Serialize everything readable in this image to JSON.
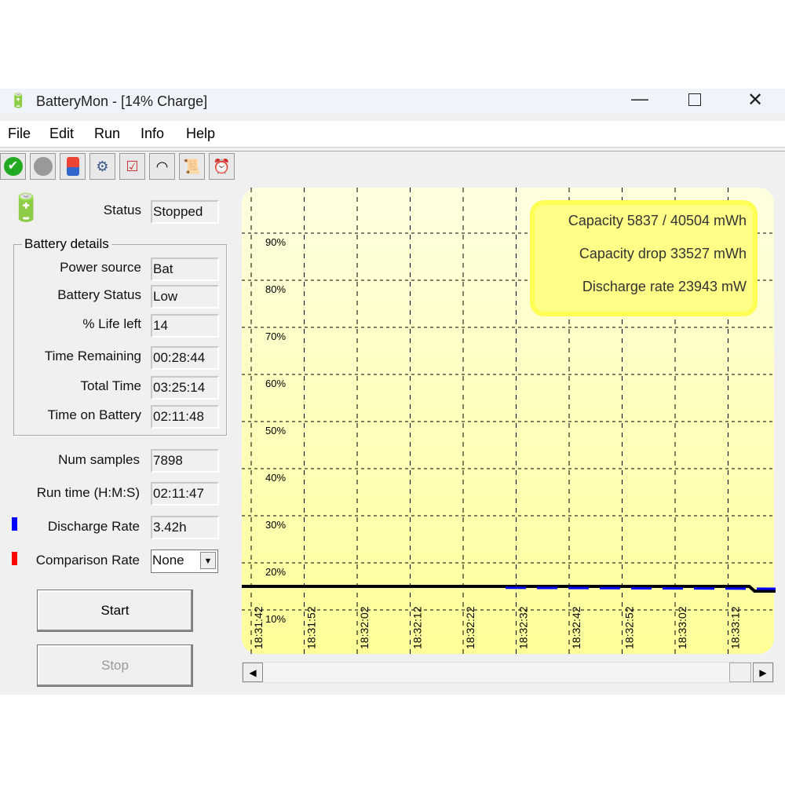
{
  "window": {
    "title": "BatteryMon - [14% Charge]",
    "controls": [
      "minimize",
      "maximize",
      "close"
    ]
  },
  "menu": [
    "File",
    "Edit",
    "Run",
    "Info",
    "Help"
  ],
  "toolbar": [
    {
      "icon": "check-icon"
    },
    {
      "icon": "stop-icon"
    },
    {
      "icon": "battery-icon"
    },
    {
      "icon": "settings-info-icon"
    },
    {
      "icon": "checklist-icon"
    },
    {
      "icon": "gauge-icon"
    },
    {
      "icon": "scroll-icon"
    },
    {
      "icon": "alarm-icon"
    }
  ],
  "status": {
    "label": "Status",
    "value": "Stopped"
  },
  "details": {
    "title": "Battery details",
    "rows": [
      {
        "label": "Power source",
        "value": "Bat"
      },
      {
        "label": "Battery Status",
        "value": "Low"
      },
      {
        "label": "% Life left",
        "value": "14"
      },
      {
        "label": "Time Remaining",
        "value": "00:28:44"
      },
      {
        "label": "Total Time",
        "value": "03:25:14"
      },
      {
        "label": "Time on Battery",
        "value": "02:11:48"
      }
    ]
  },
  "stats": [
    {
      "label": "Num samples",
      "value": "7898"
    },
    {
      "label": "Run time (H:M:S)",
      "value": "02:11:47"
    },
    {
      "label": "Discharge Rate",
      "value": "3.42h",
      "color": "#0000ff"
    },
    {
      "label": "Comparison Rate",
      "value": "None",
      "color": "#ff0000"
    }
  ],
  "buttons": {
    "start": "Start",
    "stop": "Stop"
  },
  "info": [
    "Capacity 5837 / 40504 mWh",
    "Capacity drop 33527 mWh",
    "Discharge rate 23943 mW"
  ],
  "chart_data": {
    "type": "line",
    "y_ticks": [
      "90%",
      "80%",
      "70%",
      "60%",
      "50%",
      "40%",
      "30%",
      "20%",
      "10%"
    ],
    "x_ticks": [
      "18:31:42",
      "18:31:52",
      "18:32:02",
      "18:32:12",
      "18:32:22",
      "18:32:32",
      "18:32:42",
      "18:32:52",
      "18:33:02",
      "18:33:12"
    ],
    "ylim": [
      0,
      100
    ],
    "grid": true,
    "series": [
      {
        "color": "#000000",
        "style": "solid",
        "points": [
          [
            "18:31:39",
            15
          ],
          [
            "18:33:16",
            15
          ],
          [
            "18:33:17",
            14
          ],
          [
            "18:33:21",
            14
          ]
        ]
      },
      {
        "color": "#0000ff",
        "style": "dashed",
        "points": [
          [
            "18:32:30",
            14.7
          ],
          [
            "18:33:21",
            14.5
          ]
        ]
      }
    ]
  }
}
